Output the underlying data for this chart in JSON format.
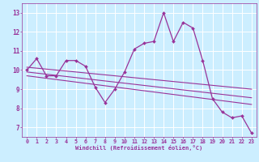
{
  "xlabel": "Windchill (Refroidissement éolien,°C)",
  "background_color": "#cceeff",
  "grid_color": "#ffffff",
  "line_color": "#993399",
  "xlim": [
    -0.5,
    23.5
  ],
  "ylim": [
    6.5,
    13.5
  ],
  "yticks": [
    7,
    8,
    9,
    10,
    11,
    12,
    13
  ],
  "xticks": [
    0,
    1,
    2,
    3,
    4,
    5,
    6,
    7,
    8,
    9,
    10,
    11,
    12,
    13,
    14,
    15,
    16,
    17,
    18,
    19,
    20,
    21,
    22,
    23
  ],
  "series1_x": [
    0,
    1,
    2,
    3,
    4,
    5,
    6,
    7,
    8,
    9,
    10,
    11,
    12,
    13,
    14,
    15,
    16,
    17,
    18,
    19,
    20,
    21,
    22,
    23
  ],
  "series1_y": [
    10.0,
    10.6,
    9.7,
    9.7,
    10.5,
    10.5,
    10.2,
    9.1,
    8.3,
    9.0,
    9.9,
    11.1,
    11.4,
    11.5,
    13.0,
    11.5,
    12.5,
    12.2,
    10.5,
    8.5,
    7.8,
    7.5,
    7.6,
    6.7
  ],
  "trend1_x": [
    0,
    23
  ],
  "trend1_y": [
    10.15,
    9.0
  ],
  "trend2_x": [
    0,
    23
  ],
  "trend2_y": [
    9.9,
    8.55
  ],
  "trend3_x": [
    0,
    23
  ],
  "trend3_y": [
    9.7,
    8.2
  ]
}
